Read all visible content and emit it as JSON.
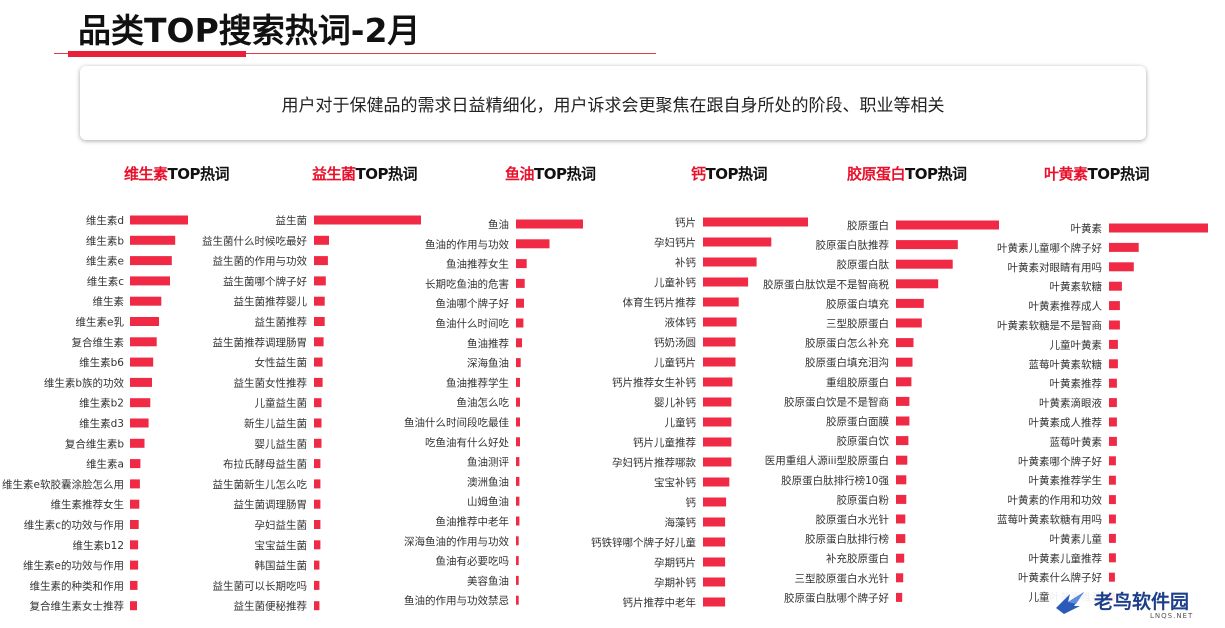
{
  "page": {
    "title": "品类TOP搜索热词-2月",
    "subtitle": "用户对于保健品的需求日益精细化，用户诉求会更聚焦在跟自身所处的阶段、职业等相关"
  },
  "colors": {
    "bar": "#f02a45",
    "accent": "#e8102a"
  },
  "watermark": {
    "text": "老鸟软件园",
    "sub": "LNQS.NET",
    "icon": "bird-logo-icon"
  },
  "chart_data": [
    {
      "type": "bar",
      "orientation": "horizontal",
      "title_highlight": "维生素",
      "title_rest": "TOP热词",
      "categories": [
        "维生素d",
        "维生素b",
        "维生素e",
        "维生素c",
        "维生素",
        "维生素e乳",
        "复合维生素",
        "维生素b6",
        "维生素b族的功效",
        "维生素b2",
        "维生素d3",
        "复合维生素b",
        "维生素a",
        "维生素e软胶囊涂脸怎么用",
        "维生素推荐女生",
        "维生素c的功效与作用",
        "维生素b12",
        "维生素e的功效与作用",
        "维生素的种类和作用",
        "复合维生素女士推荐"
      ],
      "values": [
        100,
        78,
        72,
        69,
        54,
        50,
        46,
        40,
        38,
        35,
        32,
        25,
        18,
        17,
        16,
        15,
        14,
        14,
        13,
        12
      ],
      "xlim": [
        0,
        100
      ]
    },
    {
      "type": "bar",
      "orientation": "horizontal",
      "title_highlight": "益生菌",
      "title_rest": "TOP热词",
      "categories": [
        "益生菌",
        "益生菌什么时候吃最好",
        "益生菌的作用与功效",
        "益生菌哪个牌子好",
        "益生菌推荐婴儿",
        "益生菌推荐",
        "益生菌推荐调理肠胃",
        "女性益生菌",
        "益生菌女性推荐",
        "儿童益生菌",
        "新生儿益生菌",
        "婴儿益生菌",
        "布拉氏酵母益生菌",
        "益生菌新生儿怎么吃",
        "益生菌调理肠胃",
        "孕妇益生菌",
        "宝宝益生菌",
        "韩国益生菌",
        "益生菌可以长期吃吗",
        "益生菌便秘推荐"
      ],
      "values": [
        100,
        14,
        13,
        11,
        10,
        10,
        9,
        8,
        8,
        7,
        7,
        7,
        6,
        6,
        6,
        6,
        6,
        5,
        5,
        5
      ],
      "xlim": [
        0,
        100
      ]
    },
    {
      "type": "bar",
      "orientation": "horizontal",
      "title_highlight": "鱼油",
      "title_rest": "TOP热词",
      "categories": [
        "鱼油",
        "鱼油的作用与功效",
        "鱼油推荐女生",
        "长期吃鱼油的危害",
        "鱼油哪个牌子好",
        "鱼油什么时间吃",
        "鱼油推荐",
        "深海鱼油",
        "鱼油推荐学生",
        "鱼油怎么吃",
        "鱼油什么时间段吃最佳",
        "吃鱼油有什么好处",
        "鱼油测评",
        "澳洲鱼油",
        "山姆鱼油",
        "鱼油推荐中老年",
        "深海鱼油的作用与功效",
        "鱼油有必要吃吗",
        "美容鱼油",
        "鱼油的作用与功效禁忌"
      ],
      "values": [
        100,
        50,
        16,
        13,
        12,
        11,
        9,
        7,
        6,
        6,
        6,
        6,
        5,
        5,
        5,
        5,
        4,
        4,
        4,
        4
      ],
      "xlim": [
        0,
        100
      ]
    },
    {
      "type": "bar",
      "orientation": "horizontal",
      "title_highlight": "钙",
      "title_rest": "TOP热词",
      "categories": [
        "钙片",
        "孕妇钙片",
        "补钙",
        "儿童补钙",
        "体育生钙片推荐",
        "液体钙",
        "钙奶汤圆",
        "儿童钙片",
        "钙片推荐女生补钙",
        "婴儿补钙",
        "儿童钙",
        "钙片儿童推荐",
        "孕妇钙片推荐哪款",
        "宝宝补钙",
        "钙",
        "海藻钙",
        "钙铁锌哪个牌子好儿童",
        "孕期钙片",
        "孕期补钙",
        "钙片推荐中老年"
      ],
      "values": [
        100,
        65,
        51,
        43,
        34,
        32,
        31,
        31,
        28,
        27,
        27,
        27,
        27,
        25,
        22,
        21,
        21,
        21,
        21,
        21
      ],
      "xlim": [
        0,
        100
      ]
    },
    {
      "type": "bar",
      "orientation": "horizontal",
      "title_highlight": "胶原蛋白",
      "title_rest": "TOP热词",
      "categories": [
        "胶原蛋白",
        "胶原蛋白肽推荐",
        "胶原蛋白肽",
        "胶原蛋白肽饮是不是智商税",
        "胶原蛋白填充",
        "三型胶原蛋白",
        "胶原蛋白怎么补充",
        "胶原蛋白填充泪沟",
        "重组胶原蛋白",
        "胶原蛋白饮是不是智商",
        "胶原蛋白面膜",
        "胶原蛋白饮",
        "医用重组人源iii型胶原蛋白",
        "胶原蛋白肽排行榜10强",
        "胶原蛋白粉",
        "胶原蛋白水光针",
        "胶原蛋白肽排行榜",
        "补充胶原蛋白",
        "三型胶原蛋白水光针",
        "胶原蛋白肽哪个牌子好"
      ],
      "values": [
        100,
        60,
        55,
        41,
        27,
        25,
        17,
        16,
        15,
        13,
        13,
        12,
        11,
        10,
        10,
        9,
        9,
        8,
        7,
        6
      ],
      "xlim": [
        0,
        100
      ]
    },
    {
      "type": "bar",
      "orientation": "horizontal",
      "title_highlight": "叶黄素",
      "title_rest": "TOP热词",
      "categories": [
        "叶黄素",
        "叶黄素儿童哪个牌子好",
        "叶黄素对眼睛有用吗",
        "叶黄素软糖",
        "叶黄素推荐成人",
        "叶黄素软糖是不是智商",
        "儿童叶黄素",
        "蓝莓叶黄素软糖",
        "叶黄素推荐",
        "叶黄素滴眼液",
        "叶黄素成人推荐",
        "蓝莓叶黄素",
        "叶黄素哪个牌子好",
        "叶黄素推荐学生",
        "叶黄素的作用和功效",
        "蓝莓叶黄素软糖有用吗",
        "叶黄素儿童",
        "叶黄素儿童推荐",
        "叶黄素什么牌子好",
        "儿童叶黄素推荐"
      ],
      "values": [
        100,
        30,
        25,
        13,
        11,
        11,
        9,
        9,
        8,
        8,
        8,
        8,
        7,
        7,
        7,
        7,
        7,
        7,
        6,
        6
      ],
      "xlim": [
        0,
        100
      ]
    }
  ]
}
